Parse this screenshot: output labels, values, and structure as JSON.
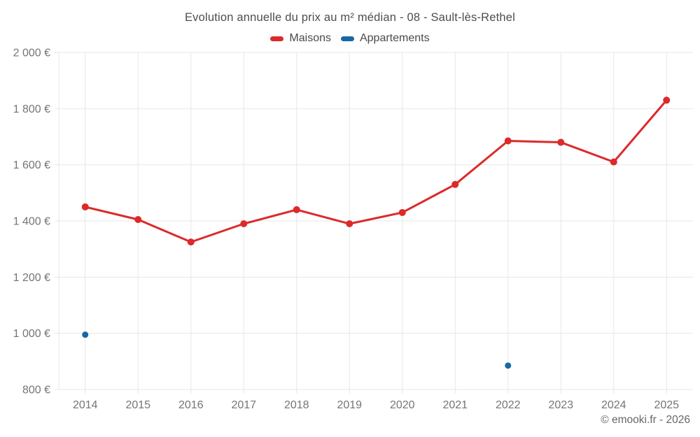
{
  "header": {
    "title": "Evolution annuelle du prix au m² médian - 08 - Sault-lès-Rethel"
  },
  "footer": {
    "credit": "© emooki.fr - 2026"
  },
  "colors": {
    "maisons": "#dc2a2a",
    "appartements": "#1769a5",
    "grid": "#e7e7e7",
    "tick_text": "#757575"
  },
  "chart_data": {
    "type": "line",
    "title": "Evolution annuelle du prix au m² médian - 08 - Sault-lès-Rethel",
    "categories": [
      "2014",
      "2015",
      "2016",
      "2017",
      "2018",
      "2019",
      "2020",
      "2021",
      "2022",
      "2023",
      "2024",
      "2025"
    ],
    "series": [
      {
        "name": "Maisons",
        "color": "#dc2a2a",
        "marker_only": false,
        "marker_radius": 5,
        "values": [
          1450,
          1405,
          1325,
          1390,
          1440,
          1390,
          1430,
          1530,
          1685,
          1680,
          1610,
          1830
        ]
      },
      {
        "name": "Appartements",
        "color": "#1769a5",
        "marker_only": true,
        "marker_radius": 4.5,
        "values": [
          995,
          null,
          null,
          null,
          null,
          null,
          null,
          null,
          885,
          null,
          null,
          null
        ]
      }
    ],
    "xlabel": "",
    "ylabel": "",
    "y_axis": {
      "min": 800,
      "max": 2000,
      "ticks": [
        {
          "value": 800,
          "label": "800 €"
        },
        {
          "value": 1000,
          "label": "1 000 €"
        },
        {
          "value": 1200,
          "label": "1 200 €"
        },
        {
          "value": 1400,
          "label": "1 400 €"
        },
        {
          "value": 1600,
          "label": "1 600 €"
        },
        {
          "value": 1800,
          "label": "1 800 €"
        },
        {
          "value": 2000,
          "label": "2 000 €"
        }
      ]
    },
    "legend_position": "top",
    "grid": true
  }
}
